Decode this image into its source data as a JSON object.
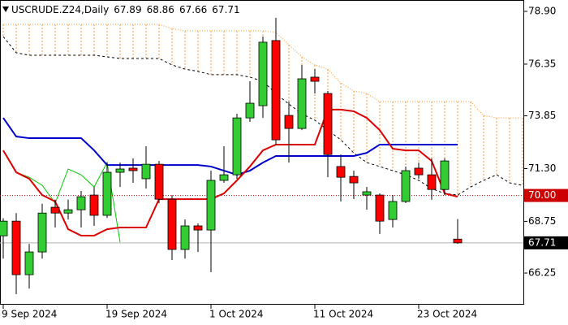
{
  "chart_data": {
    "type": "candlestick",
    "title": "USCRUDE.Z24,Daily",
    "categories": [
      "9 Sep 2024",
      null,
      null,
      null,
      null,
      null,
      null,
      null,
      "19 Sep 2024",
      null,
      null,
      null,
      null,
      null,
      null,
      null,
      "1 Oct 2024",
      null,
      null,
      null,
      null,
      null,
      null,
      null,
      "11 Oct 2024",
      null,
      null,
      null,
      null,
      null,
      null,
      null,
      "23 Oct 2024",
      null,
      null,
      null,
      null,
      null,
      null,
      null,
      null
    ],
    "open": [
      68.05,
      68.76,
      66.17,
      67.27,
      69.43,
      69.15,
      69.31,
      70.02,
      69.04,
      71.12,
      71.32,
      70.81,
      71.51,
      69.82,
      67.39,
      68.53,
      68.33,
      70.73,
      71.0,
      73.75,
      74.34,
      77.49,
      73.87,
      73.24,
      75.72,
      74.93,
      71.4,
      70.92,
      70.02,
      70.02,
      68.84,
      69.71,
      71.32,
      71.0,
      70.29,
      67.89,
      null,
      null,
      null,
      null,
      null
    ],
    "high": [
      68.9,
      69.15,
      67.66,
      69.6,
      69.8,
      69.8,
      70.22,
      70.41,
      71.59,
      71.59,
      71.79,
      72.38,
      71.67,
      70.02,
      68.84,
      68.65,
      71.2,
      72.38,
      73.95,
      75.52,
      77.68,
      78.59,
      74.54,
      76.31,
      76.11,
      75.05,
      71.98,
      71.2,
      70.41,
      70.1,
      70.02,
      71.4,
      71.59,
      71.79,
      71.79,
      68.86,
      null,
      null,
      null,
      null,
      null
    ],
    "low": [
      66.95,
      65.23,
      65.5,
      66.95,
      68.45,
      68.84,
      68.45,
      68.53,
      68.92,
      70.41,
      70.61,
      70.33,
      69.63,
      66.88,
      66.95,
      67.27,
      66.29,
      70.61,
      70.81,
      73.56,
      73.75,
      72.46,
      71.59,
      73.16,
      74.93,
      70.88,
      69.71,
      69.82,
      69.31,
      68.14,
      68.45,
      69.63,
      70.81,
      69.79,
      70.02,
      67.66,
      null,
      null,
      null,
      null,
      null
    ],
    "close": [
      68.76,
      66.17,
      67.27,
      69.15,
      69.15,
      69.31,
      69.94,
      69.04,
      71.12,
      71.28,
      71.2,
      71.51,
      69.82,
      67.39,
      68.53,
      68.33,
      70.73,
      71.0,
      73.75,
      74.46,
      77.41,
      72.69,
      73.24,
      75.64,
      75.52,
      71.98,
      70.88,
      70.61,
      70.18,
      68.76,
      69.71,
      71.2,
      71.0,
      70.29,
      71.67,
      67.71,
      null,
      null,
      null,
      null,
      null
    ],
    "bull_color": "#32cd32",
    "bear_color": "#ff0000",
    "series": [
      {
        "color": "#ff9933",
        "style": "dotted",
        "values": [
          78.27,
          78.27,
          78.27,
          78.27,
          78.27,
          78.27,
          78.27,
          78.27,
          78.27,
          78.27,
          78.27,
          78.27,
          78.27,
          78.07,
          77.96,
          77.96,
          77.96,
          77.96,
          77.96,
          77.96,
          77.96,
          77.88,
          77.29,
          76.7,
          76.31,
          76.11,
          75.44,
          75.05,
          74.93,
          74.54,
          74.54,
          74.54,
          74.54,
          74.54,
          74.54,
          74.54,
          74.54,
          73.87,
          73.75,
          73.75,
          73.75
        ]
      },
      {
        "color": "#000000",
        "style": "dashed",
        "values": [
          77.68,
          76.9,
          76.78,
          76.78,
          76.78,
          76.78,
          76.78,
          76.78,
          76.7,
          76.62,
          76.62,
          76.62,
          76.62,
          76.31,
          76.11,
          76.0,
          75.84,
          75.84,
          75.84,
          75.72,
          75.52,
          74.93,
          74.42,
          73.95,
          73.64,
          73.16,
          72.69,
          72.06,
          71.59,
          71.4,
          71.2,
          71.0,
          70.73,
          70.33,
          70.1,
          70.02,
          70.41,
          70.73,
          71.0,
          70.61,
          70.49
        ]
      },
      {
        "color": "#00cc00",
        "style": "solid",
        "values": [
          72.18,
          71.12,
          70.88,
          70.49,
          69.63,
          71.28,
          71.0,
          70.41,
          71.59,
          67.74,
          null,
          null,
          null,
          null,
          null,
          null,
          null,
          null,
          null,
          null,
          null,
          null,
          null,
          null,
          null,
          null,
          null,
          null,
          null,
          null,
          null,
          null,
          null,
          null,
          null,
          null,
          null,
          null,
          null,
          null,
          null
        ]
      },
      {
        "color": "#0000cc",
        "style": "solid",
        "width": 2,
        "values": [
          73.75,
          72.85,
          72.77,
          72.77,
          72.77,
          72.77,
          72.77,
          72.18,
          71.47,
          71.47,
          71.47,
          71.47,
          71.47,
          71.47,
          71.47,
          71.47,
          71.4,
          71.2,
          71.0,
          71.2,
          71.59,
          71.91,
          71.91,
          71.91,
          71.91,
          71.91,
          71.91,
          71.91,
          72.06,
          72.46,
          72.46,
          72.46,
          72.46,
          72.46,
          72.46,
          72.46,
          null,
          null,
          null,
          null,
          null
        ]
      },
      {
        "color": "#dd0000",
        "style": "solid",
        "width": 2,
        "values": [
          72.18,
          71.12,
          70.81,
          70.02,
          69.71,
          68.37,
          68.06,
          68.06,
          68.37,
          68.45,
          68.45,
          68.45,
          69.82,
          69.82,
          69.82,
          69.82,
          69.82,
          70.1,
          70.73,
          71.4,
          72.18,
          72.46,
          72.46,
          72.46,
          72.46,
          74.15,
          74.15,
          74.07,
          73.75,
          73.16,
          72.26,
          72.18,
          72.18,
          71.67,
          70.1,
          69.94,
          null,
          null,
          null,
          null,
          null
        ]
      }
    ],
    "cloud": {
      "color": "#ff9933"
    },
    "levels": [
      {
        "value": 70,
        "label": "70.00",
        "color": "#cc0000",
        "style": "dotted"
      },
      {
        "value": 67.71,
        "color": "#b0b0b0",
        "box": "#000000",
        "style": "solid"
      }
    ],
    "ylim": [
      64.72,
      79.45
    ],
    "yticks": [
      {
        "value": 78.9,
        "label": "78.90"
      },
      76.35,
      73.85,
      {
        "value": 71.3,
        "label": "71.30"
      },
      68.75,
      66.25
    ]
  }
}
